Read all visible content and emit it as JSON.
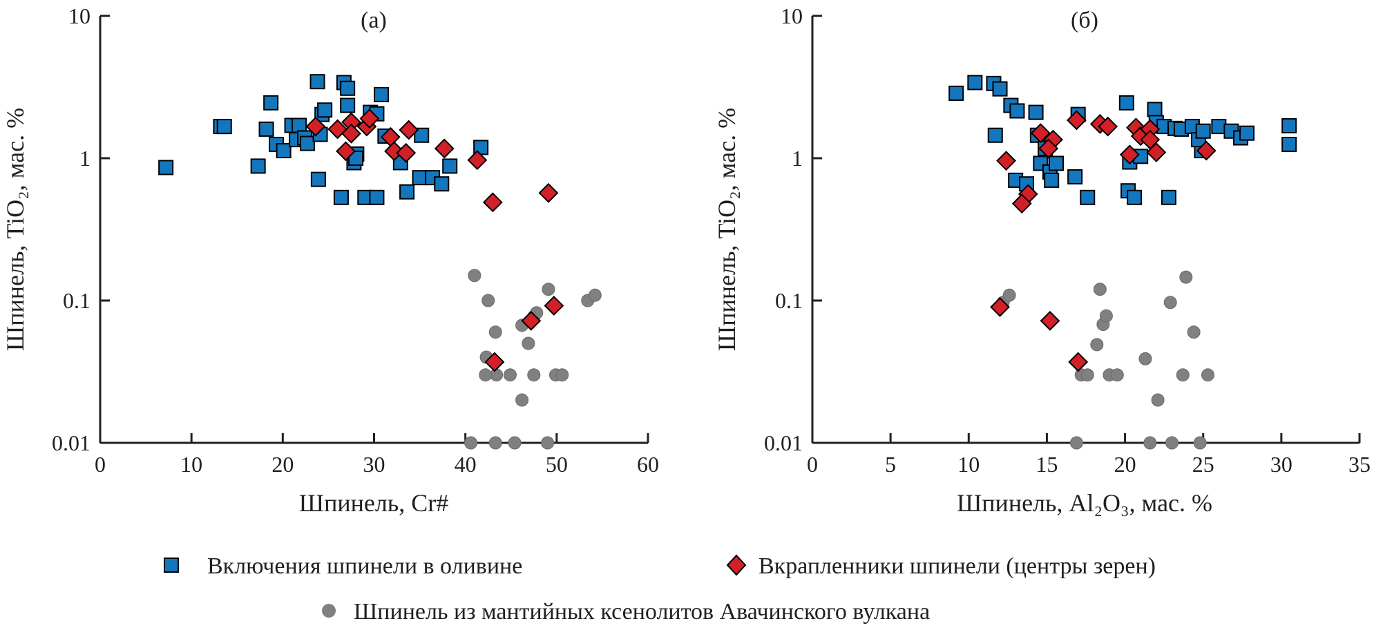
{
  "colors": {
    "blue": "#1477be",
    "red": "#d12027",
    "gray": "#808080",
    "axis": "#231f20"
  },
  "legend": {
    "placement": "bottom",
    "items": [
      {
        "label": "Включения шпинели в оливине",
        "marker": "square",
        "color": "#1477be"
      },
      {
        "label": "Вкрапленники шпинели (центры зерен)",
        "marker": "diamond",
        "color": "#d12027"
      },
      {
        "label": "Шпинель из мантийных ксенолитов Авачинского вулкана",
        "marker": "circle",
        "color": "#808080"
      }
    ]
  },
  "chart_data": [
    {
      "type": "scatter",
      "title": "(а)",
      "xlabel": "Шпинель, Cr#",
      "ylabel": "Шпинель, TiO₂, мас. %",
      "xlim": [
        0,
        60
      ],
      "ylim": [
        0.01,
        10
      ],
      "yscale": "log",
      "xticks": [
        "0",
        "10",
        "20",
        "30",
        "40",
        "50",
        "60"
      ],
      "yticks": [
        "10",
        "1",
        "0.1",
        "0.01"
      ],
      "grid": false,
      "series": [
        {
          "name": "Включения шпинели в оливине",
          "marker": "square",
          "points": [
            [
              7.2,
              0.86
            ],
            [
              13.2,
              1.67
            ],
            [
              13.6,
              1.67
            ],
            [
              18.7,
              2.45
            ],
            [
              18.2,
              1.6
            ],
            [
              17.3,
              0.88
            ],
            [
              19.3,
              1.25
            ],
            [
              20.1,
              1.13
            ],
            [
              21,
              1.7
            ],
            [
              21.8,
              1.7
            ],
            [
              21.5,
              1.35
            ],
            [
              22.4,
              1.39
            ],
            [
              22.7,
              1.27
            ],
            [
              23.8,
              3.45
            ],
            [
              24.1,
              1.47
            ],
            [
              24.3,
              2.03
            ],
            [
              24.6,
              2.18
            ],
            [
              23.9,
              0.71
            ],
            [
              26.7,
              3.4
            ],
            [
              27.1,
              3.1
            ],
            [
              27.1,
              2.35
            ],
            [
              26.4,
              0.53
            ],
            [
              27.8,
              0.93
            ],
            [
              28.1,
              1.07
            ],
            [
              28,
              1.0
            ],
            [
              29,
              0.53
            ],
            [
              29.6,
              2.1
            ],
            [
              30.3,
              2.05
            ],
            [
              30.8,
              2.8
            ],
            [
              30.3,
              0.53
            ],
            [
              31.2,
              1.43
            ],
            [
              32.9,
              0.93
            ],
            [
              33.6,
              0.58
            ],
            [
              35.2,
              1.45
            ],
            [
              35,
              0.73
            ],
            [
              36.4,
              0.73
            ],
            [
              37.4,
              0.66
            ],
            [
              38.3,
              0.88
            ],
            [
              41.7,
              1.19
            ]
          ]
        },
        {
          "name": "Вкрапленники шпинели (центры зерен)",
          "marker": "diamond",
          "points": [
            [
              23.6,
              1.67
            ],
            [
              26,
              1.6
            ],
            [
              26.9,
              1.12
            ],
            [
              27.5,
              1.79
            ],
            [
              27.5,
              1.49
            ],
            [
              29.2,
              1.67
            ],
            [
              29.5,
              1.9
            ],
            [
              31.8,
              1.41
            ],
            [
              32.2,
              1.12
            ],
            [
              33.5,
              1.09
            ],
            [
              33.8,
              1.58
            ],
            [
              37.7,
              1.17
            ],
            [
              41.3,
              0.97
            ],
            [
              43,
              0.49
            ],
            [
              49.1,
              0.57
            ],
            [
              49.7,
              0.092
            ],
            [
              47.2,
              0.072
            ],
            [
              43.2,
              0.037
            ]
          ]
        },
        {
          "name": "Шпинель из мантийных ксенолитов Авачинского вулкана",
          "marker": "circle",
          "points": [
            [
              41,
              0.15
            ],
            [
              42.5,
              0.1
            ],
            [
              42.3,
              0.04
            ],
            [
              43.3,
              0.06
            ],
            [
              43.4,
              0.03
            ],
            [
              42.2,
              0.03
            ],
            [
              40.6,
              0.01
            ],
            [
              43.3,
              0.01
            ],
            [
              45.4,
              0.01
            ],
            [
              49,
              0.01
            ],
            [
              44.9,
              0.03
            ],
            [
              46.2,
              0.067
            ],
            [
              46.9,
              0.05
            ],
            [
              47.5,
              0.077
            ],
            [
              47.8,
              0.082
            ],
            [
              46.2,
              0.02
            ],
            [
              47.5,
              0.03
            ],
            [
              49.1,
              0.12
            ],
            [
              49.9,
              0.03
            ],
            [
              50.6,
              0.03
            ],
            [
              53.4,
              0.1
            ],
            [
              54.2,
              0.109
            ]
          ]
        }
      ]
    },
    {
      "type": "scatter",
      "title": "(б)",
      "xlabel": "Шпинель, Al₂O₃, мас. %",
      "ylabel": "Шпинель, TiO₂, мас. %",
      "xlim": [
        0,
        35
      ],
      "ylim": [
        0.01,
        10
      ],
      "yscale": "log",
      "xticks": [
        "0",
        "5",
        "10",
        "15",
        "20",
        "25",
        "30",
        "35"
      ],
      "yticks": [
        "10",
        "1",
        "0.1",
        "0.01"
      ],
      "grid": false,
      "series": [
        {
          "name": "Включения шпинели в оливине",
          "marker": "square",
          "points": [
            [
              9.2,
              2.86
            ],
            [
              10.4,
              3.4
            ],
            [
              11.6,
              3.35
            ],
            [
              12,
              3.07
            ],
            [
              11.7,
              1.45
            ],
            [
              12.7,
              2.35
            ],
            [
              13.1,
              2.15
            ],
            [
              13,
              0.7
            ],
            [
              13.7,
              0.66
            ],
            [
              14.3,
              2.1
            ],
            [
              14.4,
              1.45
            ],
            [
              14.6,
              0.92
            ],
            [
              14.9,
              1.17
            ],
            [
              15.2,
              0.8
            ],
            [
              15.3,
              0.7
            ],
            [
              15.6,
              0.92
            ],
            [
              17,
              2.03
            ],
            [
              16.8,
              0.74
            ],
            [
              17.6,
              0.53
            ],
            [
              20.1,
              2.45
            ],
            [
              20.2,
              0.59
            ],
            [
              20.3,
              0.94
            ],
            [
              20.6,
              0.53
            ],
            [
              21,
              1.03
            ],
            [
              21.9,
              2.2
            ],
            [
              22,
              1.78
            ],
            [
              22.5,
              1.67
            ],
            [
              22.8,
              0.53
            ],
            [
              23.2,
              1.62
            ],
            [
              23.6,
              1.6
            ],
            [
              24.3,
              1.67
            ],
            [
              24.9,
              1.13
            ],
            [
              24.7,
              1.35
            ],
            [
              25,
              1.55
            ],
            [
              26,
              1.67
            ],
            [
              26.8,
              1.55
            ],
            [
              27.4,
              1.39
            ],
            [
              27.8,
              1.5
            ],
            [
              30.5,
              1.69
            ],
            [
              30.5,
              1.25
            ]
          ]
        },
        {
          "name": "Вкрапленники шпинели (центры зерен)",
          "marker": "diamond",
          "points": [
            [
              12,
              0.09
            ],
            [
              15.2,
              0.072
            ],
            [
              17,
              0.037
            ],
            [
              12.4,
              0.96
            ],
            [
              13.8,
              0.56
            ],
            [
              13.4,
              0.48
            ],
            [
              14.6,
              1.5
            ],
            [
              15.4,
              1.35
            ],
            [
              15.1,
              1.17
            ],
            [
              16.9,
              1.85
            ],
            [
              18.4,
              1.74
            ],
            [
              18.9,
              1.67
            ],
            [
              20.3,
              1.06
            ],
            [
              20.7,
              1.64
            ],
            [
              21,
              1.43
            ],
            [
              21.6,
              1.6
            ],
            [
              21.6,
              1.35
            ],
            [
              22,
              1.1
            ],
            [
              25.2,
              1.13
            ]
          ]
        },
        {
          "name": "Шпинель из мантийных ксенолитов Авачинского вулкана",
          "marker": "circle",
          "points": [
            [
              12.2,
              0.097
            ],
            [
              12.6,
              0.109
            ],
            [
              18.4,
              0.12
            ],
            [
              18.2,
              0.049
            ],
            [
              18.6,
              0.068
            ],
            [
              18.8,
              0.078
            ],
            [
              19,
              0.03
            ],
            [
              19.5,
              0.03
            ],
            [
              21.3,
              0.039
            ],
            [
              22.1,
              0.02
            ],
            [
              21.6,
              0.01
            ],
            [
              23,
              0.01
            ],
            [
              22.9,
              0.097
            ],
            [
              23.9,
              0.146
            ],
            [
              23.7,
              0.03
            ],
            [
              24.4,
              0.06
            ],
            [
              24.8,
              0.01
            ],
            [
              25.3,
              0.03
            ],
            [
              16.9,
              0.01
            ],
            [
              17.2,
              0.03
            ],
            [
              17.6,
              0.03
            ]
          ]
        }
      ]
    }
  ]
}
